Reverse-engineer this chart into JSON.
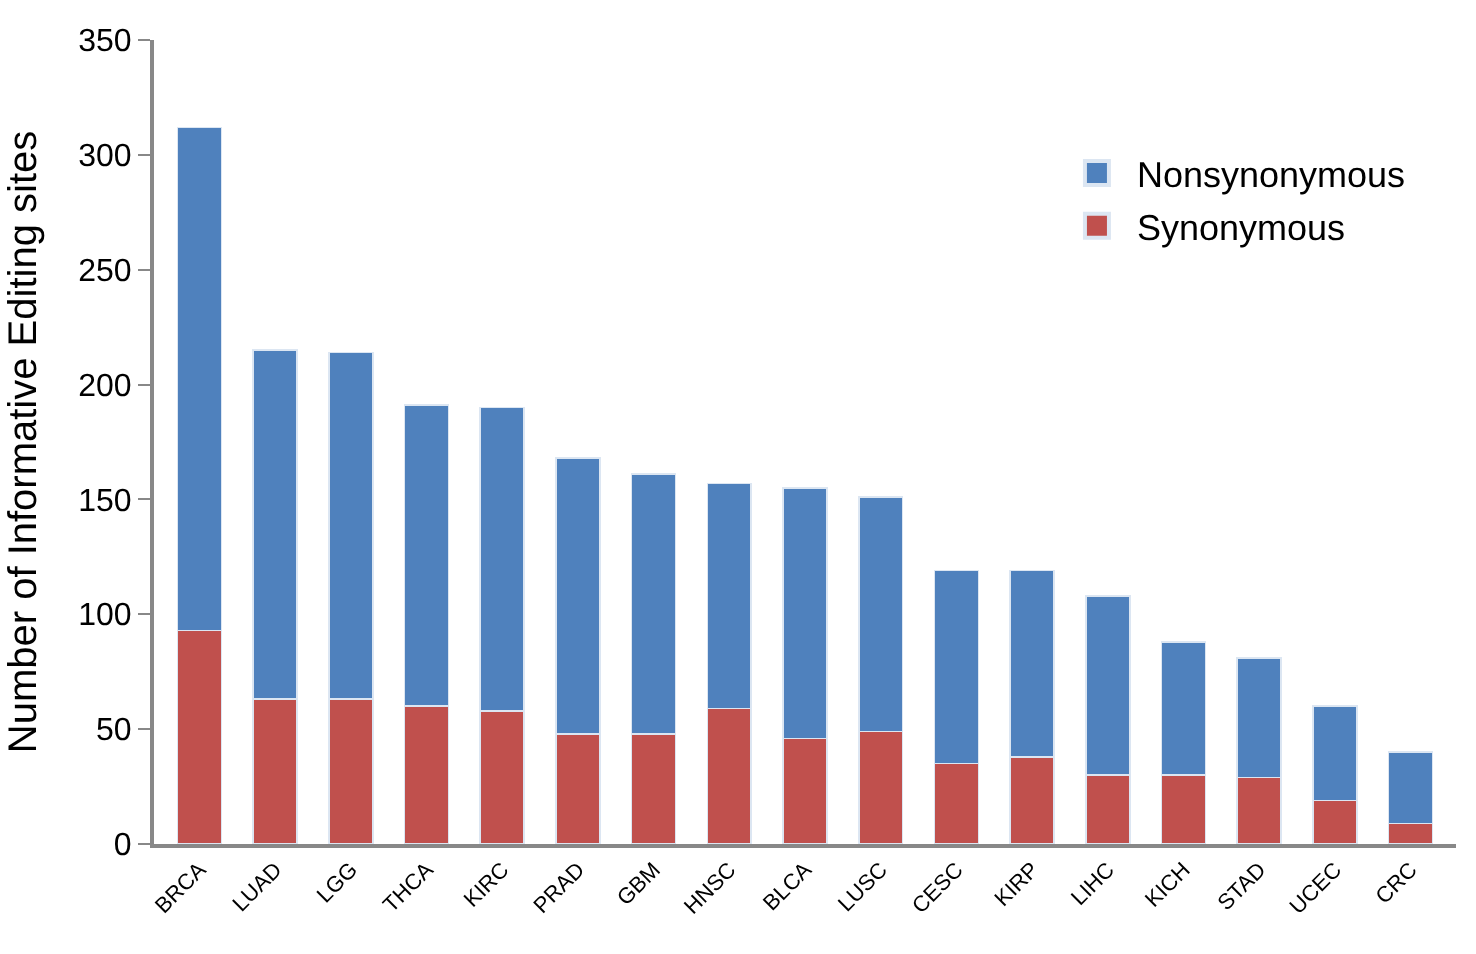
{
  "chart_data": {
    "type": "bar",
    "stacked": true,
    "ylabel": "Number of Informative Editing sites",
    "categories": [
      "BRCA",
      "LUAD",
      "LGG",
      "THCA",
      "KIRC",
      "PRAD",
      "GBM",
      "HNSC",
      "BLCA",
      "LUSC",
      "CESC",
      "KIRP",
      "LIHC",
      "KICH",
      "STAD",
      "UCEC",
      "CRC"
    ],
    "series": [
      {
        "name": "Synonymous",
        "color": "#c0504d",
        "values": [
          93,
          63,
          63,
          60,
          58,
          48,
          48,
          59,
          46,
          49,
          35,
          38,
          30,
          30,
          29,
          19,
          9
        ]
      },
      {
        "name": "Nonsynonymous",
        "color": "#4f81bd",
        "values": [
          219,
          152,
          151,
          131,
          132,
          120,
          113,
          98,
          109,
          102,
          84,
          81,
          78,
          58,
          52,
          41,
          31
        ]
      }
    ],
    "ylim": [
      0,
      350
    ],
    "yticks": [
      0,
      50,
      100,
      150,
      200,
      250,
      300,
      350
    ],
    "legend": "top right"
  }
}
